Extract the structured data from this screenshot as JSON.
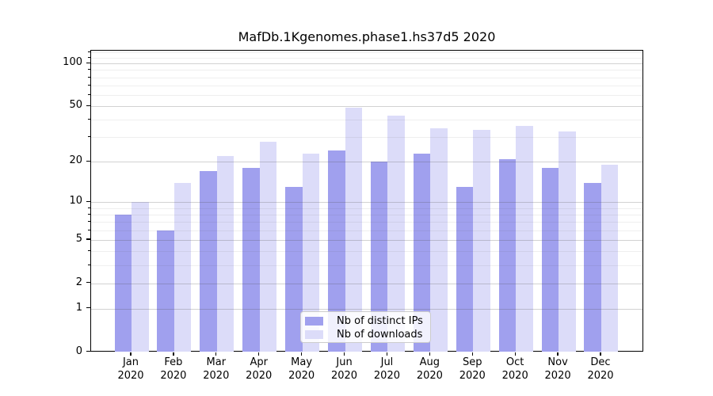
{
  "chart_data": {
    "type": "bar",
    "title": "MafDb.1Kgenomes.phase1.hs37d5 2020",
    "categories": [
      "Jan",
      "Feb",
      "Mar",
      "Apr",
      "May",
      "Jun",
      "Jul",
      "Aug",
      "Sep",
      "Oct",
      "Nov",
      "Dec"
    ],
    "x_tick_second_line": "2020",
    "series": [
      {
        "name": "Nb of distinct IPs",
        "color": "#a0a0ee",
        "values": [
          8,
          6,
          17,
          18,
          13,
          24,
          20,
          23,
          13,
          21,
          18,
          14
        ]
      },
      {
        "name": "Nb of downloads",
        "color": "#dcdcf9",
        "values": [
          10,
          14,
          22,
          28,
          23,
          49,
          43,
          35,
          34,
          36,
          33,
          19
        ]
      }
    ],
    "y_scale": "log10(value+1)",
    "y_major_ticks": [
      0,
      1,
      2,
      5,
      10,
      20,
      50,
      100
    ],
    "y_minor_gridlines": [
      3,
      4,
      6,
      7,
      8,
      9,
      30,
      40,
      60,
      70,
      80,
      90,
      110,
      120
    ],
    "y_top_value": 123,
    "ylim": [
      0,
      123
    ],
    "grid": true,
    "legend_position": "inside-bottom-center"
  },
  "colors": {
    "axis": "#000000",
    "major_grid": "#cccccc",
    "minor_grid": "#ebebeb",
    "legend_border": "#cccccc"
  }
}
